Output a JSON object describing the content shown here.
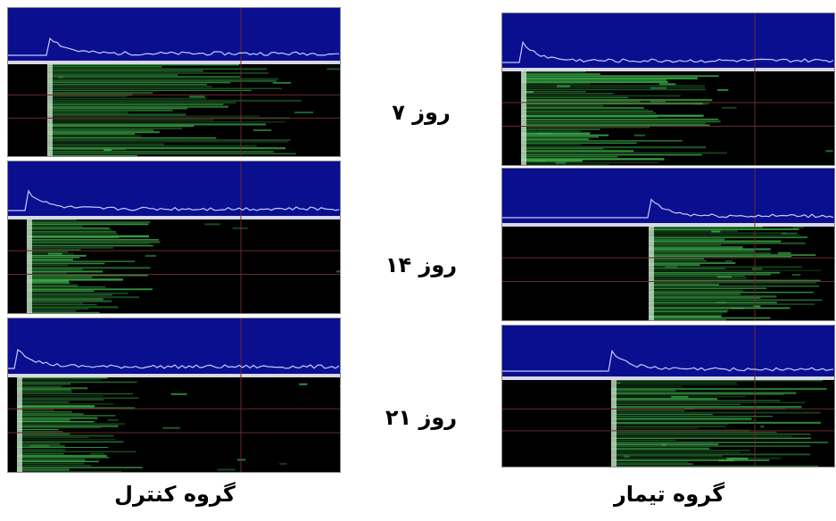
{
  "days": [
    {
      "label": "روز ۷"
    },
    {
      "label": "روز ۱۴"
    },
    {
      "label": "روز ۲۱"
    }
  ],
  "groups": {
    "control": "گروه کنترل",
    "treatment": "گروه تیمار"
  },
  "colors": {
    "header_blue": "#0a0f8f",
    "signal_green": "#3fbf4f",
    "trace_line": "#c8c8ff",
    "grid_line": "#6a2a2a",
    "background": "#000000"
  },
  "panels": [
    {
      "id": "control-day7",
      "group": "control",
      "day": 1,
      "onset": 0.12,
      "extent": 0.85
    },
    {
      "id": "control-day14",
      "group": "control",
      "day": 2,
      "onset": 0.06,
      "extent": 0.45
    },
    {
      "id": "control-day21",
      "group": "control",
      "day": 3,
      "onset": 0.03,
      "extent": 0.4
    },
    {
      "id": "treatment-day7",
      "group": "treatment",
      "day": 1,
      "onset": 0.06,
      "extent": 0.65
    },
    {
      "id": "treatment-day14",
      "group": "treatment",
      "day": 2,
      "onset": 0.44,
      "extent": 0.95
    },
    {
      "id": "treatment-day21",
      "group": "treatment",
      "day": 3,
      "onset": 0.33,
      "extent": 0.95
    }
  ]
}
